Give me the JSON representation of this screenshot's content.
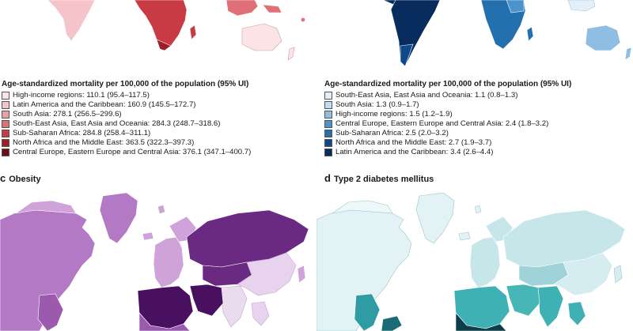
{
  "panels": [
    {
      "id": "a",
      "legend": {
        "title": "Age-standardized mortality per 100,000 of the population (95% UI)",
        "items": [
          {
            "label": "High-income regions: 110.1 (95.4–117.5)",
            "color": "#fbe3e6"
          },
          {
            "label": "Latin America and the Caribbean: 160.9 (145.5–172.7)",
            "color": "#f5c4ca"
          },
          {
            "label": "South Asia: 278.1 (256.5–299.6)",
            "color": "#ec9ea6"
          },
          {
            "label": "South-East Asia, East Asia and Oceania: 284.3 (248.7–318.6)",
            "color": "#df7077"
          },
          {
            "label": "Sub-Saharan Africa: 284.8 (258.4–311.1)",
            "color": "#c83a44"
          },
          {
            "label": "North Africa and the Middle East: 363.5 (322.3–397.3)",
            "color": "#9e1d2a"
          },
          {
            "label": "Central Europe, Eastern Europe and Central Asia: 376.1 (347.1–400.7)",
            "color": "#6b0f1c"
          }
        ]
      }
    },
    {
      "id": "b",
      "legend": {
        "title": "Age-standardized mortality per 100,000 of the population (95% UI)",
        "items": [
          {
            "label": "South-East Asia, East Asia and Oceania: 1.1 (0.8–1.3)",
            "color": "#e3f0fa"
          },
          {
            "label": "South Asia: 1.3 (0.9–1.7)",
            "color": "#c3dcf1"
          },
          {
            "label": "High-income regions: 1.5 (1.2–1.9)",
            "color": "#8fbde3"
          },
          {
            "label": "Central Europe, Eastern Europe and Central Asia: 2.4 (1.8–3.2)",
            "color": "#4b93cb"
          },
          {
            "label": "Sub-Saharan Africa: 2.5 (2.0–3.2)",
            "color": "#2470ae"
          },
          {
            "label": "North Africa and the Middle East: 2.7 (1.9–3.7)",
            "color": "#10498a"
          },
          {
            "label": "Latin America and the Caribbean: 3.4 (2.6–4.4)",
            "color": "#082c5e"
          }
        ]
      }
    },
    {
      "id": "c",
      "letter": "c",
      "title": "Obesity"
    },
    {
      "id": "d",
      "letter": "d",
      "title": "Type 2 diabetes mellitus"
    }
  ]
}
